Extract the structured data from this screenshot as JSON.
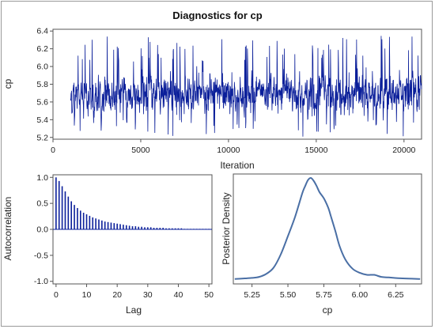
{
  "title": "Diagnostics for cp",
  "chart_data": [
    {
      "id": "trace",
      "type": "line",
      "xlabel": "Iteration",
      "ylabel": "cp",
      "xlim": [
        0,
        21000
      ],
      "ylim": [
        5.18,
        6.42
      ],
      "xticks": [
        0,
        5000,
        10000,
        15000,
        20000
      ],
      "yticks": [
        5.2,
        5.4,
        5.6,
        5.8,
        6.0,
        6.2,
        6.4
      ],
      "series": [
        {
          "x_start": 1000,
          "x_end": 21000,
          "center": 5.67,
          "typical_low": 5.45,
          "typical_high": 5.9,
          "min": 5.2,
          "max": 6.35
        }
      ],
      "color": "#0b1f9a"
    },
    {
      "id": "autocorrelation",
      "type": "bar",
      "xlabel": "Lag",
      "ylabel": "Autocorrelation",
      "xlim": [
        -1,
        51
      ],
      "ylim": [
        -1.05,
        1.05
      ],
      "xticks": [
        0,
        10,
        20,
        30,
        40,
        50
      ],
      "yticks": [
        -1.0,
        -0.5,
        0.0,
        0.5,
        1.0
      ],
      "lags": [
        0,
        1,
        2,
        3,
        4,
        5,
        6,
        7,
        8,
        9,
        10,
        11,
        12,
        13,
        14,
        15,
        16,
        17,
        18,
        19,
        20,
        21,
        22,
        23,
        24,
        25,
        26,
        27,
        28,
        29,
        30,
        31,
        32,
        33,
        34,
        35,
        36,
        37,
        38,
        39,
        40,
        41,
        42,
        43,
        44,
        45,
        46,
        47,
        48,
        49,
        50
      ],
      "values": [
        1.0,
        0.93,
        0.83,
        0.73,
        0.63,
        0.54,
        0.47,
        0.41,
        0.36,
        0.32,
        0.29,
        0.26,
        0.23,
        0.21,
        0.19,
        0.17,
        0.15,
        0.14,
        0.13,
        0.12,
        0.11,
        0.1,
        0.09,
        0.08,
        0.07,
        0.06,
        0.06,
        0.05,
        0.05,
        0.04,
        0.04,
        0.04,
        0.03,
        0.03,
        0.03,
        0.03,
        0.02,
        0.02,
        0.02,
        0.02,
        0.02,
        0.02,
        0.01,
        0.01,
        0.01,
        0.01,
        0.01,
        0.01,
        0.01,
        0.01,
        0.01
      ],
      "color": "#0b1f9a"
    },
    {
      "id": "density",
      "type": "line",
      "xlabel": "cp",
      "ylabel": "Posterior Density",
      "xlim": [
        5.12,
        6.43
      ],
      "xticks": [
        5.25,
        5.5,
        5.75,
        6.0,
        6.25
      ],
      "xtick_labels": [
        "5.25",
        "5.50",
        "5.75",
        "6.00",
        "6.25"
      ],
      "x": [
        5.13,
        5.2,
        5.25,
        5.3,
        5.35,
        5.4,
        5.45,
        5.5,
        5.55,
        5.6,
        5.62,
        5.64,
        5.66,
        5.68,
        5.7,
        5.72,
        5.75,
        5.78,
        5.8,
        5.83,
        5.86,
        5.9,
        5.95,
        6.0,
        6.05,
        6.1,
        6.15,
        6.2,
        6.3,
        6.42
      ],
      "y": [
        0.01,
        0.015,
        0.02,
        0.03,
        0.06,
        0.12,
        0.25,
        0.43,
        0.62,
        0.85,
        0.92,
        0.98,
        1.0,
        0.97,
        0.92,
        0.86,
        0.8,
        0.71,
        0.62,
        0.48,
        0.33,
        0.2,
        0.11,
        0.07,
        0.05,
        0.05,
        0.03,
        0.025,
        0.015,
        0.01
      ],
      "color": "#4a6fa5"
    }
  ]
}
